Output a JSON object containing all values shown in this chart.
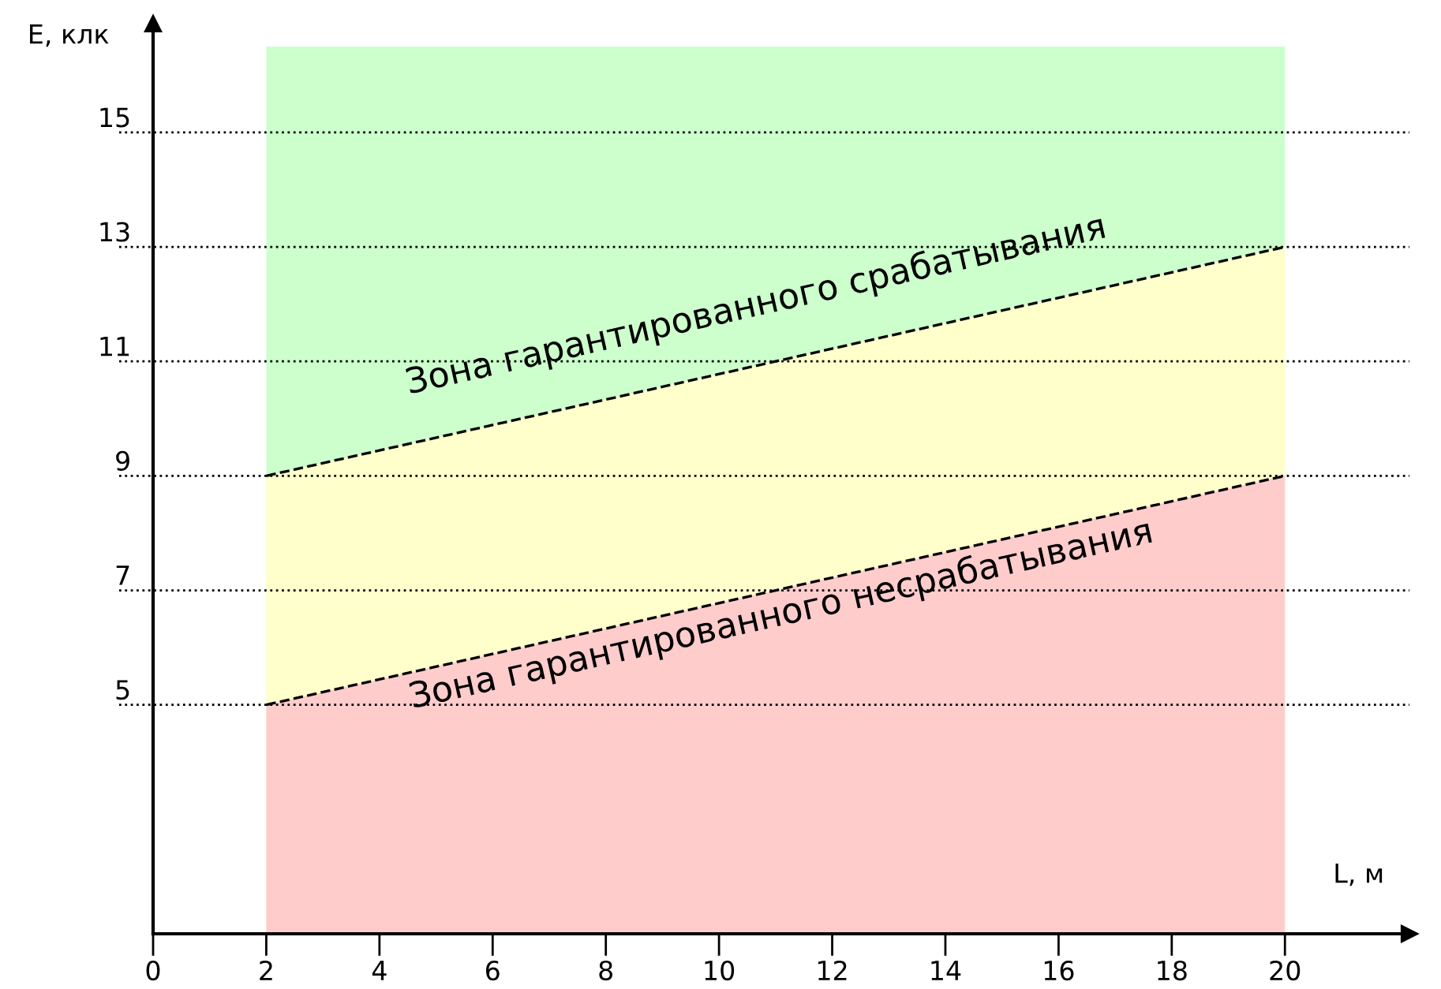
{
  "chart_data": {
    "type": "area",
    "xlabel": "L, м",
    "ylabel": "E, клк",
    "x": [
      2,
      20
    ],
    "series": [
      {
        "color": "#ccffcc",
        "values": [
          16.5,
          16.5
        ]
      },
      {
        "color": "#ffffcc",
        "values": [
          9,
          13
        ],
        "line_style": "dashed"
      },
      {
        "color": "#ffcccc",
        "values": [
          5,
          9
        ],
        "line_style": "dashed"
      }
    ],
    "xlim": [
      0,
      22.2
    ],
    "ylim": [
      1,
      16.9
    ],
    "xticks": [
      0,
      2,
      4,
      6,
      8,
      10,
      12,
      14,
      16,
      18,
      20
    ],
    "yticks": [
      5,
      7,
      9,
      11,
      13,
      15
    ],
    "grid": "y",
    "legend": false,
    "annotations": [
      "Зона гарантированного срабатывания",
      "Зона гарантированного несрабатывания"
    ]
  }
}
